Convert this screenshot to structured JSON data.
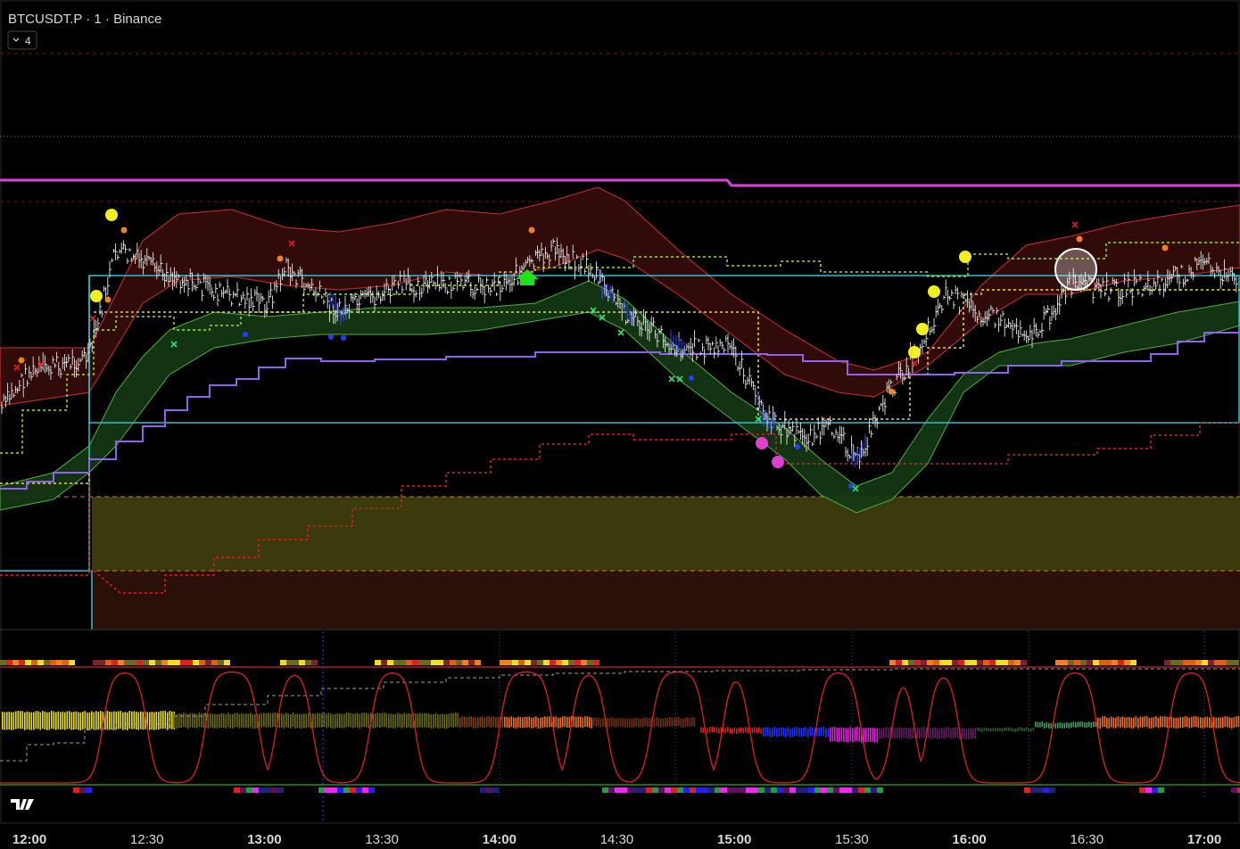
{
  "header": {
    "symbol": "BTCUSDT.P · 1 · Binance",
    "indicator_count": "4"
  },
  "time_axis": {
    "labels": [
      "12:00",
      "12:30",
      "13:00",
      "13:30",
      "14:00",
      "14:30",
      "15:00",
      "15:30",
      "16:00",
      "16:30",
      "17:00"
    ]
  }
}
